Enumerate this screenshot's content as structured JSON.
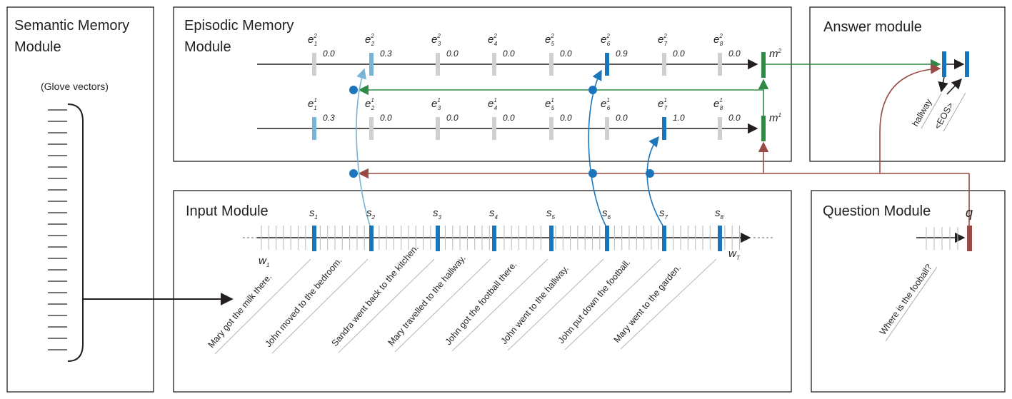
{
  "modules": {
    "semantic_title_line1": "Semantic Memory",
    "semantic_title_line2": "Module",
    "glove_label": "(Glove vectors)",
    "episodic_title_line1": "Episodic Memory",
    "episodic_title_line2": "Module",
    "answer_title": "Answer module",
    "input_title": "Input Module",
    "question_title": "Question Module"
  },
  "episodic": {
    "pass2": {
      "label": "e",
      "superscript": "2",
      "gates": [
        "0.0",
        "0.3",
        "0.0",
        "0.0",
        "0.0",
        "0.9",
        "0.0",
        "0.0"
      ],
      "memory_label": "m",
      "memory_sup": "2"
    },
    "pass1": {
      "label": "e",
      "superscript": "1",
      "gates": [
        "0.3",
        "0.0",
        "0.0",
        "0.0",
        "0.0",
        "0.0",
        "1.0",
        "0.0"
      ],
      "memory_label": "m",
      "memory_sup": "1"
    }
  },
  "input": {
    "sentence_labels": [
      "s",
      "s",
      "s",
      "s",
      "s",
      "s",
      "s",
      "s"
    ],
    "sentence_subs": [
      "1",
      "2",
      "3",
      "4",
      "5",
      "6",
      "7",
      "8"
    ],
    "w_first": "w",
    "w_first_sub": "1",
    "w_last": "w",
    "w_last_sub": "T",
    "sentences": [
      "Mary got the milk there.",
      "John moved to the bedroom.",
      "Sandra went back to the kitchen.",
      "Mary travelled to the hallway.",
      "John got the football there.",
      "John went to the hallway.",
      "John put down the football.",
      "Mary went to the garden."
    ]
  },
  "question": {
    "q_label": "q",
    "text": "Where is the fooball?"
  },
  "answer": {
    "outputs": [
      "hallway",
      "<EOS>"
    ]
  },
  "colors": {
    "blue": "#1b75bb",
    "light_blue": "#79b3d6",
    "green": "#2f8a46",
    "brown": "#9a4a44",
    "gray_gate": "#d0d0d0",
    "box_border": "#231f20"
  }
}
